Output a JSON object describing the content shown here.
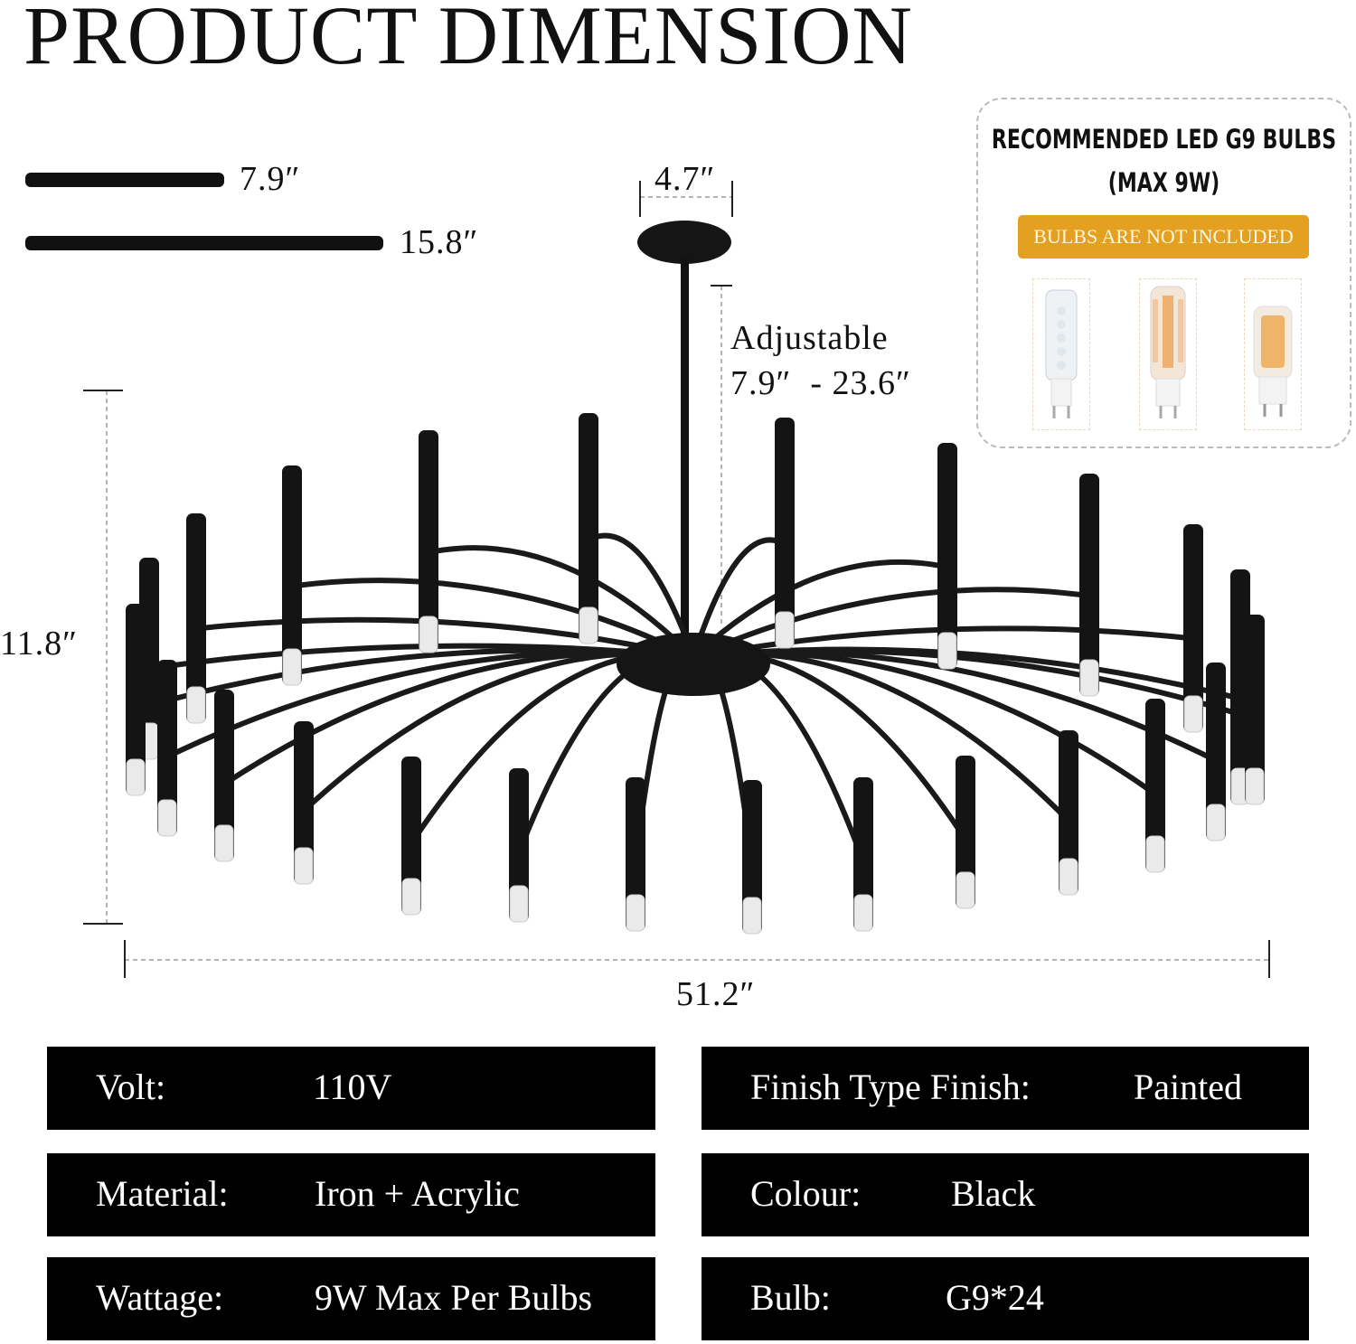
{
  "title": "PRODUCT DIMENSION",
  "rods": [
    {
      "length_label": "7.9″"
    },
    {
      "length_label": "15.8″"
    }
  ],
  "dimensions": {
    "canopy_width": "4.7″",
    "adjustable_label": "Adjustable",
    "adjustable_range": "7.9″  - 23.6″",
    "height": "11.8″",
    "width": "51.2″"
  },
  "bulb_panel": {
    "title_line1": "RECOMMENDED LED G9 BULBS",
    "title_line2": "(MAX 9W)",
    "notice": "BULBS ARE NOT INCLUDED",
    "notice_color": "#e4a020",
    "bulbs": [
      "cool-white-led-g9",
      "warm-led-g9",
      "warm-cob-g9"
    ]
  },
  "specs": [
    {
      "label": "Volt:",
      "value": "110V"
    },
    {
      "label": "Finish Type Finish:",
      "value": "Painted"
    },
    {
      "label": "Material:",
      "value": "Iron + Acrylic"
    },
    {
      "label": "Colour:",
      "value": "Black"
    },
    {
      "label": "Wattage:",
      "value": "9W Max Per Bulbs"
    },
    {
      "label": "Bulb:",
      "value": "G9*24"
    }
  ]
}
